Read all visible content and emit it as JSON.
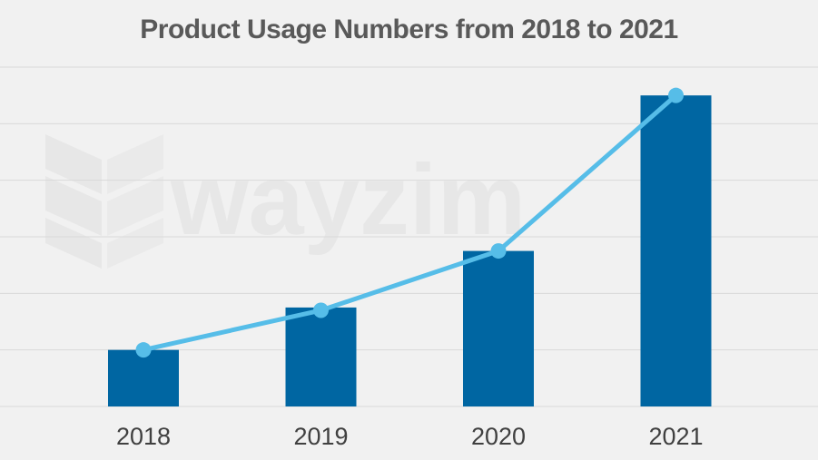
{
  "title": "Product Usage Numbers from 2018 to 2021",
  "watermark": "wayzim",
  "colors": {
    "background": "#f1f1f1",
    "bar": "#0066a2",
    "line": "#56bde8",
    "grid": "#d9d9d9",
    "title": "#595959",
    "tick_label": "#404040"
  },
  "chart_data": {
    "type": "bar",
    "title": "Product Usage Numbers from 2018 to 2021",
    "categories": [
      "2018",
      "2019",
      "2020",
      "2021"
    ],
    "series": [
      {
        "type": "bar",
        "values": [
          1.0,
          1.75,
          2.75,
          5.5
        ]
      },
      {
        "type": "line",
        "values": [
          1.0,
          1.7,
          2.75,
          5.5
        ]
      }
    ],
    "xlabel": "",
    "ylabel": "",
    "ylim": [
      0,
      6
    ],
    "grid": true,
    "y_tick_labels_visible": false,
    "legend": "none"
  }
}
